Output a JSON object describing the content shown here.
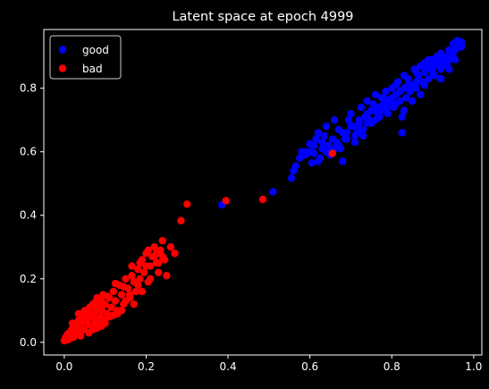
{
  "chart_data": {
    "type": "scatter",
    "title": "Latent space at epoch 4999",
    "xlabel": "",
    "ylabel": "",
    "xlim": [
      -0.05,
      1.02
    ],
    "ylim": [
      -0.04,
      0.985
    ],
    "x_ticks": [
      "0.0",
      "0.2",
      "0.4",
      "0.6",
      "0.8",
      "1.0"
    ],
    "y_ticks": [
      "0.0",
      "0.2",
      "0.4",
      "0.6",
      "0.8"
    ],
    "grid": false,
    "legend_position": "top-left",
    "background": "#000000",
    "series": [
      {
        "name": "good",
        "color": "#0000ff",
        "points": [
          [
            0.385,
            0.433
          ],
          [
            0.51,
            0.474
          ],
          [
            0.555,
            0.517
          ],
          [
            0.56,
            0.54
          ],
          [
            0.565,
            0.555
          ],
          [
            0.575,
            0.58
          ],
          [
            0.58,
            0.6
          ],
          [
            0.59,
            0.59
          ],
          [
            0.6,
            0.625
          ],
          [
            0.605,
            0.565
          ],
          [
            0.61,
            0.595
          ],
          [
            0.615,
            0.64
          ],
          [
            0.62,
            0.66
          ],
          [
            0.625,
            0.58
          ],
          [
            0.63,
            0.61
          ],
          [
            0.635,
            0.65
          ],
          [
            0.64,
            0.68
          ],
          [
            0.645,
            0.62
          ],
          [
            0.65,
            0.59
          ],
          [
            0.655,
            0.64
          ],
          [
            0.66,
            0.7
          ],
          [
            0.665,
            0.63
          ],
          [
            0.67,
            0.67
          ],
          [
            0.675,
            0.61
          ],
          [
            0.68,
            0.57
          ],
          [
            0.685,
            0.64
          ],
          [
            0.69,
            0.66
          ],
          [
            0.695,
            0.7
          ],
          [
            0.7,
            0.72
          ],
          [
            0.705,
            0.68
          ],
          [
            0.71,
            0.63
          ],
          [
            0.715,
            0.66
          ],
          [
            0.72,
            0.69
          ],
          [
            0.725,
            0.74
          ],
          [
            0.73,
            0.65
          ],
          [
            0.735,
            0.71
          ],
          [
            0.74,
            0.76
          ],
          [
            0.745,
            0.7
          ],
          [
            0.75,
            0.73
          ],
          [
            0.755,
            0.75
          ],
          [
            0.76,
            0.78
          ],
          [
            0.765,
            0.72
          ],
          [
            0.77,
            0.74
          ],
          [
            0.775,
            0.77
          ],
          [
            0.78,
            0.75
          ],
          [
            0.785,
            0.79
          ],
          [
            0.79,
            0.72
          ],
          [
            0.795,
            0.76
          ],
          [
            0.8,
            0.8
          ],
          [
            0.805,
            0.74
          ],
          [
            0.81,
            0.78
          ],
          [
            0.815,
            0.82
          ],
          [
            0.82,
            0.76
          ],
          [
            0.825,
            0.71
          ],
          [
            0.825,
            0.66
          ],
          [
            0.83,
            0.8
          ],
          [
            0.835,
            0.77
          ],
          [
            0.84,
            0.83
          ],
          [
            0.845,
            0.79
          ],
          [
            0.85,
            0.81
          ],
          [
            0.855,
            0.86
          ],
          [
            0.86,
            0.8
          ],
          [
            0.865,
            0.84
          ],
          [
            0.87,
            0.78
          ],
          [
            0.875,
            0.82
          ],
          [
            0.88,
            0.85
          ],
          [
            0.885,
            0.87
          ],
          [
            0.89,
            0.83
          ],
          [
            0.895,
            0.86
          ],
          [
            0.9,
            0.88
          ],
          [
            0.905,
            0.84
          ],
          [
            0.91,
            0.87
          ],
          [
            0.915,
            0.89
          ],
          [
            0.92,
            0.86
          ],
          [
            0.925,
            0.88
          ],
          [
            0.93,
            0.9
          ],
          [
            0.935,
            0.87
          ],
          [
            0.94,
            0.89
          ],
          [
            0.945,
            0.91
          ],
          [
            0.95,
            0.9
          ],
          [
            0.955,
            0.92
          ],
          [
            0.96,
            0.93
          ],
          [
            0.965,
            0.94
          ],
          [
            0.97,
            0.945
          ],
          [
            0.81,
            0.81
          ],
          [
            0.83,
            0.84
          ],
          [
            0.86,
            0.82
          ],
          [
            0.88,
            0.81
          ],
          [
            0.9,
            0.85
          ],
          [
            0.92,
            0.83
          ],
          [
            0.94,
            0.86
          ],
          [
            0.87,
            0.87
          ],
          [
            0.89,
            0.89
          ],
          [
            0.91,
            0.9
          ],
          [
            0.93,
            0.88
          ],
          [
            0.955,
            0.89
          ],
          [
            0.8,
            0.77
          ],
          [
            0.78,
            0.73
          ],
          [
            0.76,
            0.7
          ],
          [
            0.74,
            0.72
          ],
          [
            0.72,
            0.7
          ],
          [
            0.7,
            0.68
          ],
          [
            0.68,
            0.66
          ],
          [
            0.66,
            0.61
          ],
          [
            0.64,
            0.6
          ],
          [
            0.62,
            0.57
          ],
          [
            0.6,
            0.6
          ],
          [
            0.72,
            0.67
          ],
          [
            0.74,
            0.69
          ],
          [
            0.76,
            0.74
          ],
          [
            0.78,
            0.77
          ],
          [
            0.82,
            0.79
          ],
          [
            0.84,
            0.81
          ],
          [
            0.86,
            0.85
          ],
          [
            0.88,
            0.88
          ],
          [
            0.9,
            0.89
          ],
          [
            0.92,
            0.91
          ],
          [
            0.94,
            0.92
          ],
          [
            0.96,
            0.95
          ],
          [
            0.97,
            0.93
          ],
          [
            0.95,
            0.94
          ],
          [
            0.85,
            0.76
          ],
          [
            0.83,
            0.73
          ],
          [
            0.81,
            0.75
          ],
          [
            0.79,
            0.74
          ],
          [
            0.77,
            0.71
          ],
          [
            0.75,
            0.69
          ],
          [
            0.73,
            0.67
          ],
          [
            0.71,
            0.65
          ],
          [
            0.69,
            0.64
          ],
          [
            0.67,
            0.62
          ],
          [
            0.65,
            0.6
          ],
          [
            0.63,
            0.63
          ],
          [
            0.61,
            0.62
          ],
          [
            0.59,
            0.6
          ]
        ]
      },
      {
        "name": "bad",
        "color": "#ff0000",
        "points": [
          [
            0.0,
            0.005
          ],
          [
            0.003,
            0.015
          ],
          [
            0.005,
            0.01
          ],
          [
            0.008,
            0.025
          ],
          [
            0.01,
            0.008
          ],
          [
            0.012,
            0.03
          ],
          [
            0.015,
            0.02
          ],
          [
            0.018,
            0.04
          ],
          [
            0.02,
            0.035
          ],
          [
            0.022,
            0.015
          ],
          [
            0.025,
            0.05
          ],
          [
            0.028,
            0.045
          ],
          [
            0.03,
            0.06
          ],
          [
            0.032,
            0.03
          ],
          [
            0.035,
            0.07
          ],
          [
            0.038,
            0.05
          ],
          [
            0.04,
            0.08
          ],
          [
            0.042,
            0.06
          ],
          [
            0.045,
            0.09
          ],
          [
            0.048,
            0.04
          ],
          [
            0.05,
            0.1
          ],
          [
            0.052,
            0.07
          ],
          [
            0.055,
            0.065
          ],
          [
            0.058,
            0.09
          ],
          [
            0.06,
            0.055
          ],
          [
            0.062,
            0.11
          ],
          [
            0.065,
            0.08
          ],
          [
            0.068,
            0.05
          ],
          [
            0.07,
            0.12
          ],
          [
            0.072,
            0.09
          ],
          [
            0.075,
            0.07
          ],
          [
            0.078,
            0.1
          ],
          [
            0.08,
            0.14
          ],
          [
            0.082,
            0.06
          ],
          [
            0.085,
            0.11
          ],
          [
            0.088,
            0.08
          ],
          [
            0.09,
            0.13
          ],
          [
            0.092,
            0.1
          ],
          [
            0.095,
            0.15
          ],
          [
            0.098,
            0.07
          ],
          [
            0.1,
            0.12
          ],
          [
            0.105,
            0.09
          ],
          [
            0.11,
            0.14
          ],
          [
            0.115,
            0.11
          ],
          [
            0.12,
            0.16
          ],
          [
            0.125,
            0.13
          ],
          [
            0.13,
            0.1
          ],
          [
            0.135,
            0.18
          ],
          [
            0.14,
            0.15
          ],
          [
            0.145,
            0.12
          ],
          [
            0.15,
            0.2
          ],
          [
            0.155,
            0.17
          ],
          [
            0.16,
            0.14
          ],
          [
            0.165,
            0.21
          ],
          [
            0.17,
            0.19
          ],
          [
            0.175,
            0.16
          ],
          [
            0.18,
            0.23
          ],
          [
            0.185,
            0.2
          ],
          [
            0.19,
            0.26
          ],
          [
            0.195,
            0.22
          ],
          [
            0.2,
            0.28
          ],
          [
            0.205,
            0.19
          ],
          [
            0.21,
            0.24
          ],
          [
            0.215,
            0.27
          ],
          [
            0.22,
            0.3
          ],
          [
            0.225,
            0.25
          ],
          [
            0.23,
            0.22
          ],
          [
            0.235,
            0.29
          ],
          [
            0.24,
            0.32
          ],
          [
            0.245,
            0.26
          ],
          [
            0.25,
            0.21
          ],
          [
            0.26,
            0.3
          ],
          [
            0.27,
            0.28
          ],
          [
            0.285,
            0.383
          ],
          [
            0.3,
            0.435
          ],
          [
            0.395,
            0.446
          ],
          [
            0.485,
            0.45
          ],
          [
            0.655,
            0.595
          ],
          [
            0.07,
            0.04
          ],
          [
            0.09,
            0.05
          ],
          [
            0.11,
            0.08
          ],
          [
            0.13,
            0.09
          ],
          [
            0.15,
            0.13
          ],
          [
            0.17,
            0.12
          ],
          [
            0.19,
            0.16
          ],
          [
            0.21,
            0.2
          ],
          [
            0.23,
            0.25
          ],
          [
            0.04,
            0.02
          ],
          [
            0.06,
            0.03
          ],
          [
            0.08,
            0.045
          ],
          [
            0.1,
            0.06
          ],
          [
            0.12,
            0.085
          ],
          [
            0.14,
            0.1
          ],
          [
            0.16,
            0.15
          ],
          [
            0.18,
            0.18
          ],
          [
            0.2,
            0.24
          ],
          [
            0.22,
            0.27
          ],
          [
            0.24,
            0.27
          ],
          [
            0.105,
            0.145
          ],
          [
            0.125,
            0.185
          ],
          [
            0.145,
            0.175
          ],
          [
            0.165,
            0.24
          ],
          [
            0.185,
            0.25
          ],
          [
            0.205,
            0.29
          ],
          [
            0.225,
            0.28
          ],
          [
            0.02,
            0.06
          ],
          [
            0.035,
            0.09
          ],
          [
            0.055,
            0.095
          ],
          [
            0.075,
            0.125
          ],
          [
            0.095,
            0.12
          ]
        ]
      }
    ]
  }
}
